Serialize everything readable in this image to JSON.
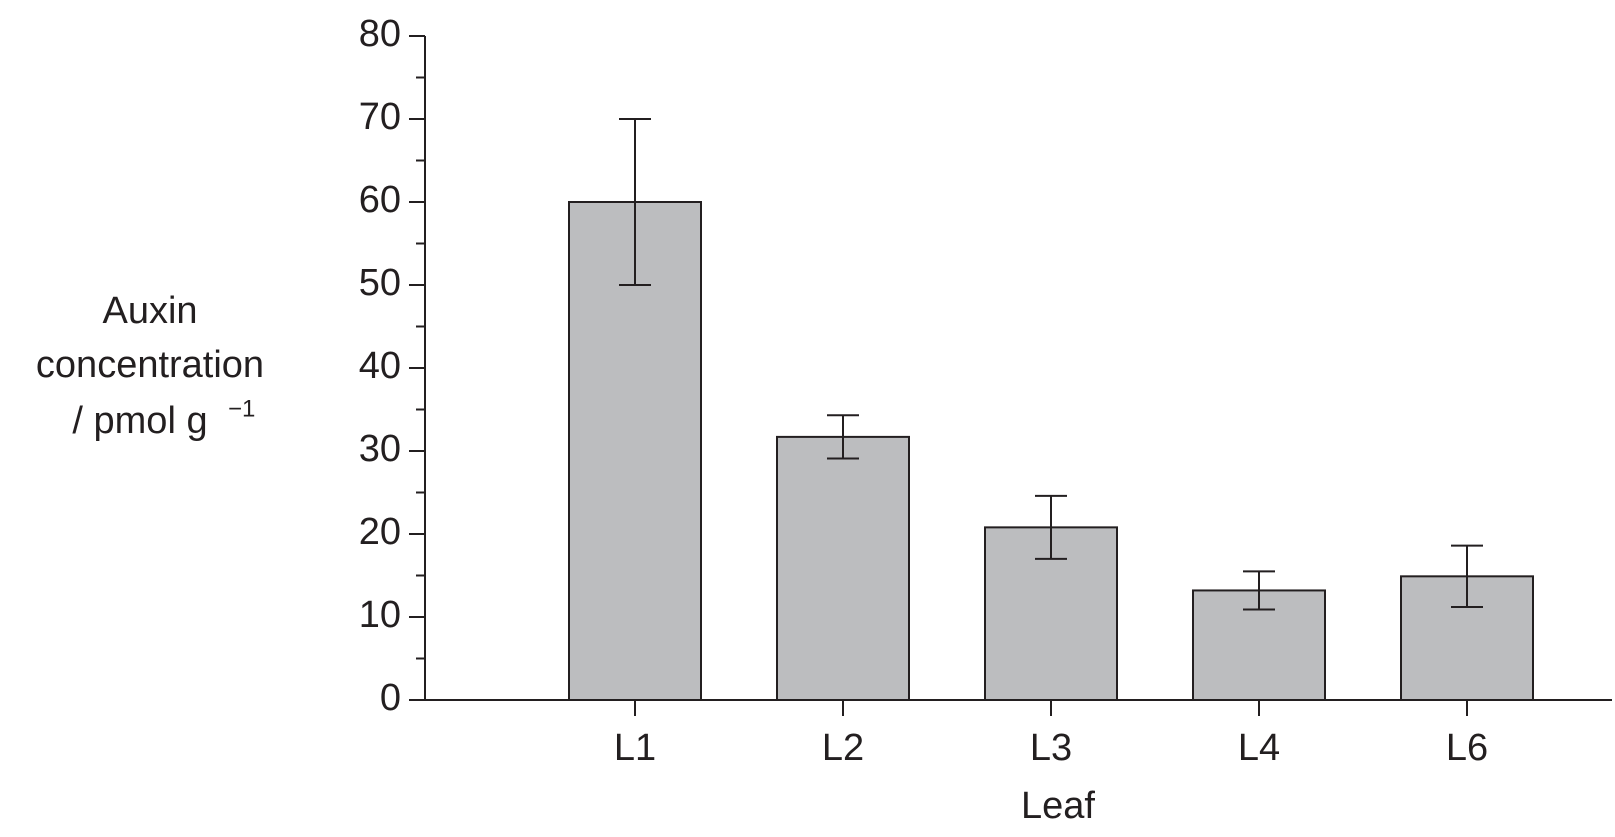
{
  "chart_data": {
    "type": "bar",
    "categories": [
      "L1",
      "L2",
      "L3",
      "L4",
      "L6"
    ],
    "values": [
      60,
      31.7,
      20.8,
      13.2,
      14.9
    ],
    "errors": [
      10,
      2.6,
      3.8,
      2.3,
      3.7
    ],
    "color": "#bcbdbf",
    "ylim": [
      0,
      80
    ],
    "yticks": [
      0,
      10,
      20,
      30,
      40,
      50,
      60,
      70,
      80
    ],
    "yminorticks": [
      5,
      15,
      25,
      35,
      45,
      55,
      65,
      75
    ],
    "ylabel": [
      "Auxin",
      "concentration",
      "/ pmol g"
    ],
    "ylabel_superscript": "−1",
    "xlabel": "Leaf"
  }
}
